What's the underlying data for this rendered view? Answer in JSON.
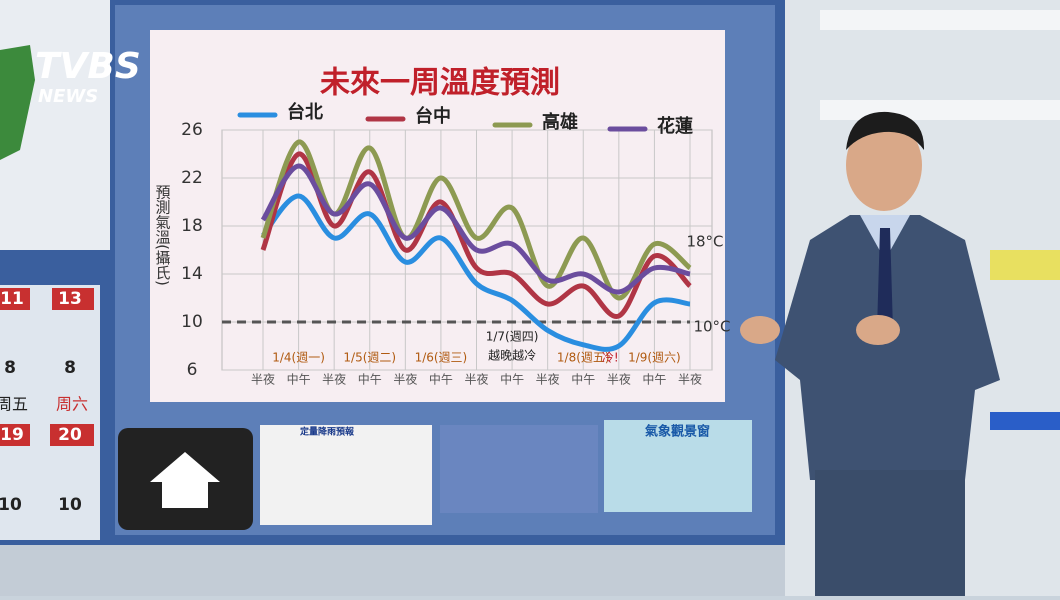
{
  "logo": {
    "brand": "TVBS",
    "sub": "NEWS"
  },
  "side_panel": {
    "highs_top": [
      "11",
      "13"
    ],
    "lows_top": [
      "8",
      "8"
    ],
    "days": [
      "周五",
      "周六"
    ],
    "highs_bottom": [
      "19",
      "20"
    ],
    "lows_bottom": [
      "10",
      "10"
    ]
  },
  "thumbnails": [
    "定量降雨預報",
    "氣象觀景窗"
  ],
  "chart_data": {
    "type": "line",
    "title": "未來一周溫度預測",
    "y_label": "預測氣溫(攝氏)",
    "categories": [
      "半夜",
      "中午",
      "半夜",
      "中午",
      "半夜",
      "中午",
      "半夜",
      "中午",
      "半夜",
      "中午",
      "半夜",
      "中午",
      "半夜"
    ],
    "series": [
      {
        "name": "台北",
        "color": "#2a8ee0",
        "values": [
          17.2,
          20.5,
          17,
          19,
          15,
          17,
          13.2,
          11.8,
          9.3,
          8.1,
          8,
          11.6,
          11.5
        ]
      },
      {
        "name": "台中",
        "color": "#b03545",
        "values": [
          16,
          24,
          18,
          22.5,
          16,
          20,
          14.5,
          14,
          11.5,
          13,
          10.5,
          15.5,
          13
        ]
      },
      {
        "name": "高雄",
        "color": "#8d9a52",
        "values": [
          17,
          25,
          19,
          24.5,
          17,
          22,
          17,
          19.5,
          13,
          17,
          12,
          16.5,
          14.5
        ]
      },
      {
        "name": "花蓮",
        "color": "#6b4d9e",
        "values": [
          18.5,
          23,
          19,
          21.5,
          17,
          19.5,
          16,
          16.5,
          13.5,
          14,
          12.5,
          14.5,
          14
        ]
      }
    ],
    "ylim": [
      6,
      26
    ],
    "yticks": [
      6,
      10,
      14,
      18,
      22,
      26
    ],
    "grid": true,
    "reference_line": 10,
    "day_labels": [
      "1/4(週一)",
      "1/5(週二)",
      "1/6(週三)",
      "1/7(週四)",
      "1/8(週五)",
      "1/9(週六)"
    ],
    "annotations": [
      "越晚越冷",
      "冷!",
      "18°C",
      "10°C"
    ]
  }
}
